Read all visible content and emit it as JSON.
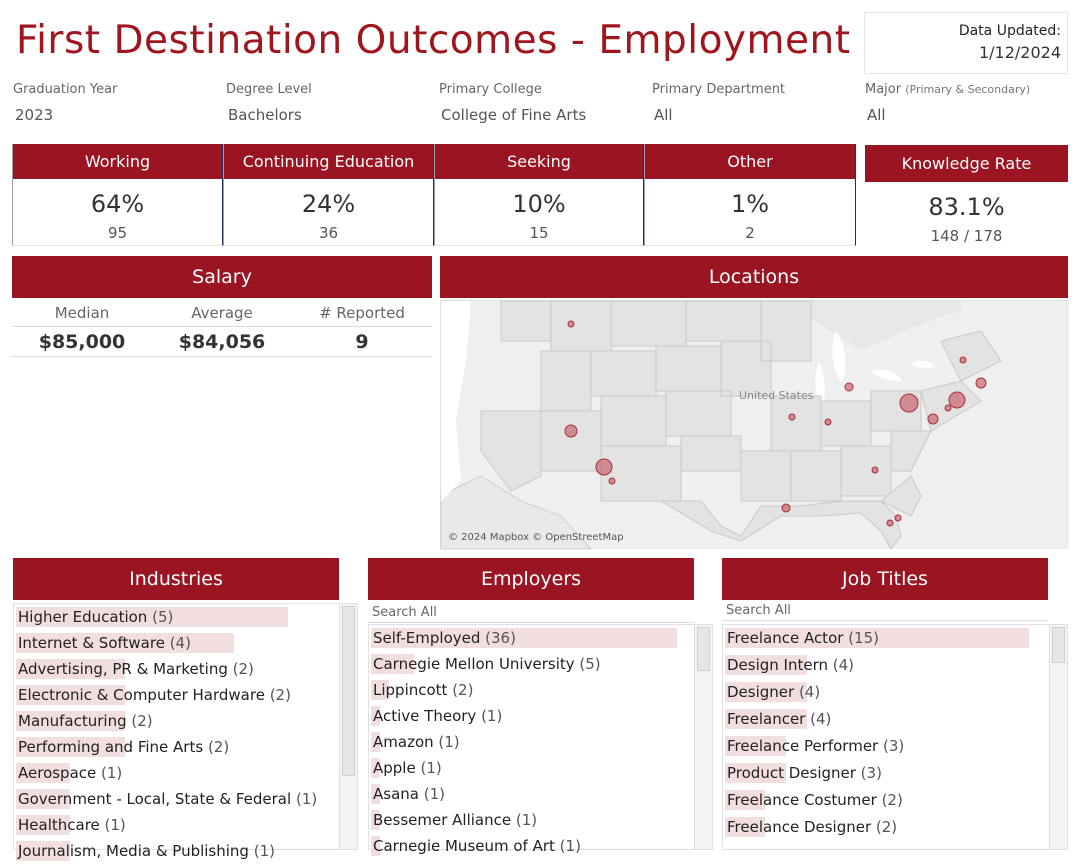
{
  "header": {
    "title": "First Destination Outcomes - Employment",
    "updated_label": "Data Updated:",
    "updated_date": "1/12/2024"
  },
  "filters": [
    {
      "label": "Graduation Year",
      "value": "2023"
    },
    {
      "label": "Degree Level",
      "value": "Bachelors"
    },
    {
      "label": "Primary College",
      "value": "College of Fine Arts"
    },
    {
      "label": "Primary Department",
      "value": "All"
    },
    {
      "label": "Major",
      "label_note": "(Primary & Secondary)",
      "value": "All"
    }
  ],
  "kpis": [
    {
      "label": "Working",
      "pct": "64%",
      "count": "95"
    },
    {
      "label": "Continuing Education",
      "pct": "24%",
      "count": "36"
    },
    {
      "label": "Seeking",
      "pct": "10%",
      "count": "15"
    },
    {
      "label": "Other",
      "pct": "1%",
      "count": "2"
    },
    {
      "label": "Knowledge Rate",
      "pct": "83.1%",
      "count": "148 / 178"
    }
  ],
  "salary": {
    "title": "Salary",
    "headers": [
      "Median",
      "Average",
      "# Reported"
    ],
    "values": [
      "$85,000",
      "$84,056",
      "9"
    ]
  },
  "locations": {
    "title": "Locations",
    "country_label": "United States",
    "attribution": "© 2024 Mapbox © OpenStreetMap"
  },
  "industries": {
    "title": "Industries",
    "items": [
      {
        "name": "Higher Education",
        "count": "(5)",
        "share": 1.0
      },
      {
        "name": "Internet & Software",
        "count": "(4)",
        "share": 0.8
      },
      {
        "name": "Advertising, PR & Marketing",
        "count": "(2)",
        "share": 0.4
      },
      {
        "name": "Electronic & Computer Hardware",
        "count": "(2)",
        "share": 0.4
      },
      {
        "name": "Manufacturing",
        "count": "(2)",
        "share": 0.4
      },
      {
        "name": "Performing and Fine Arts",
        "count": "(2)",
        "share": 0.4
      },
      {
        "name": "Aerospace",
        "count": "(1)",
        "share": 0.2
      },
      {
        "name": "Government - Local, State & Federal",
        "count": "(1)",
        "share": 0.2
      },
      {
        "name": "Healthcare",
        "count": "(1)",
        "share": 0.2
      },
      {
        "name": "Journalism, Media & Publishing",
        "count": "(1)",
        "share": 0.2
      }
    ]
  },
  "employers": {
    "title": "Employers",
    "search_placeholder": "Search All",
    "items": [
      {
        "name": "Self-Employed",
        "count": "(36)",
        "share": 1.0
      },
      {
        "name": "Carnegie Mellon University",
        "count": "(5)",
        "share": 0.14
      },
      {
        "name": "Lippincott",
        "count": "(2)",
        "share": 0.06
      },
      {
        "name": "Active Theory",
        "count": "(1)",
        "share": 0.03
      },
      {
        "name": "Amazon",
        "count": "(1)",
        "share": 0.03
      },
      {
        "name": "Apple",
        "count": "(1)",
        "share": 0.03
      },
      {
        "name": "Asana",
        "count": "(1)",
        "share": 0.03
      },
      {
        "name": "Bessemer Alliance",
        "count": "(1)",
        "share": 0.03
      },
      {
        "name": "Carnegie Museum of Art",
        "count": "(1)",
        "share": 0.03
      }
    ]
  },
  "job_titles": {
    "title": "Job Titles",
    "search_placeholder": "Search All",
    "items": [
      {
        "name": "Freelance Actor",
        "count": "(15)",
        "share": 1.0
      },
      {
        "name": "Design Intern",
        "count": "(4)",
        "share": 0.27
      },
      {
        "name": "Designer",
        "count": "(4)",
        "share": 0.27
      },
      {
        "name": "Freelancer",
        "count": "(4)",
        "share": 0.27
      },
      {
        "name": "Freelance Performer",
        "count": "(3)",
        "share": 0.2
      },
      {
        "name": "Product Designer",
        "count": "(3)",
        "share": 0.2
      },
      {
        "name": "Freelance Costumer",
        "count": "(2)",
        "share": 0.13
      },
      {
        "name": "Freelance Designer",
        "count": "(2)",
        "share": 0.13
      }
    ]
  },
  "colors": {
    "accent": "#9a1421",
    "bar": "#f2dede",
    "marker": "#c0444c"
  }
}
